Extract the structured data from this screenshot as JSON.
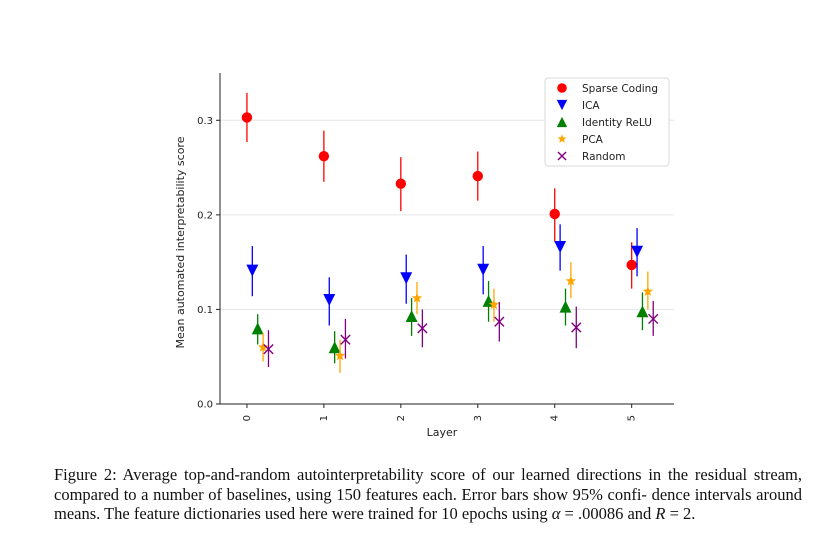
{
  "chart_data": {
    "type": "scatter",
    "xlabel": "Layer",
    "ylabel": "Mean automated interpretability score",
    "x_ticks": [
      "0",
      "1",
      "2",
      "3",
      "4",
      "5"
    ],
    "y_ticks": [
      "0.0",
      "0.1",
      "0.2",
      "0.3"
    ],
    "ylim": [
      0.0,
      0.35
    ],
    "xlim": [
      -0.35,
      5.55
    ],
    "grid": true,
    "legend_position": "top-right",
    "series": [
      {
        "name": "Sparse Coding",
        "marker": "circle",
        "color": "#ff0000",
        "offset": 0.0,
        "values": [
          0.303,
          0.262,
          0.233,
          0.241,
          0.201,
          0.147
        ],
        "err_low": [
          0.277,
          0.235,
          0.204,
          0.215,
          0.172,
          0.122
        ],
        "err_high": [
          0.329,
          0.289,
          0.261,
          0.267,
          0.228,
          0.171
        ]
      },
      {
        "name": "ICA",
        "marker": "triangle-down",
        "color": "#0000ff",
        "offset": 0.07,
        "values": [
          0.141,
          0.11,
          0.133,
          0.142,
          0.166,
          0.161
        ],
        "err_low": [
          0.114,
          0.083,
          0.106,
          0.116,
          0.141,
          0.135
        ],
        "err_high": [
          0.167,
          0.134,
          0.158,
          0.167,
          0.19,
          0.186
        ]
      },
      {
        "name": "Identity ReLU",
        "marker": "triangle-up",
        "color": "#008000",
        "offset": 0.14,
        "values": [
          0.08,
          0.06,
          0.093,
          0.109,
          0.103,
          0.098
        ],
        "err_low": [
          0.063,
          0.043,
          0.072,
          0.087,
          0.083,
          0.078
        ],
        "err_high": [
          0.095,
          0.077,
          0.112,
          0.13,
          0.122,
          0.118
        ]
      },
      {
        "name": "PCA",
        "marker": "star",
        "color": "#ffa500",
        "offset": 0.21,
        "values": [
          0.06,
          0.051,
          0.112,
          0.105,
          0.13,
          0.119
        ],
        "err_low": [
          0.045,
          0.033,
          0.095,
          0.087,
          0.112,
          0.1
        ],
        "err_high": [
          0.075,
          0.068,
          0.129,
          0.122,
          0.15,
          0.14
        ]
      },
      {
        "name": "Random",
        "marker": "x",
        "color": "#800080",
        "offset": 0.28,
        "values": [
          0.058,
          0.068,
          0.08,
          0.087,
          0.081,
          0.09
        ],
        "err_low": [
          0.039,
          0.048,
          0.06,
          0.066,
          0.059,
          0.072
        ],
        "err_high": [
          0.078,
          0.09,
          0.1,
          0.108,
          0.103,
          0.109
        ]
      }
    ]
  },
  "caption": {
    "text_1": "Figure 2: Average top-and-random autointerpretability score of our learned directions in the residual stream, compared to a number of baselines, using 150 features each. Error bars show 95% confi- dence intervals around means. The feature dictionaries used here were trained for 10 epochs using ",
    "alpha_symbol": "α",
    "alpha_eq": " = .00086 and ",
    "r_symbol": "R",
    "r_eq": " = 2."
  }
}
